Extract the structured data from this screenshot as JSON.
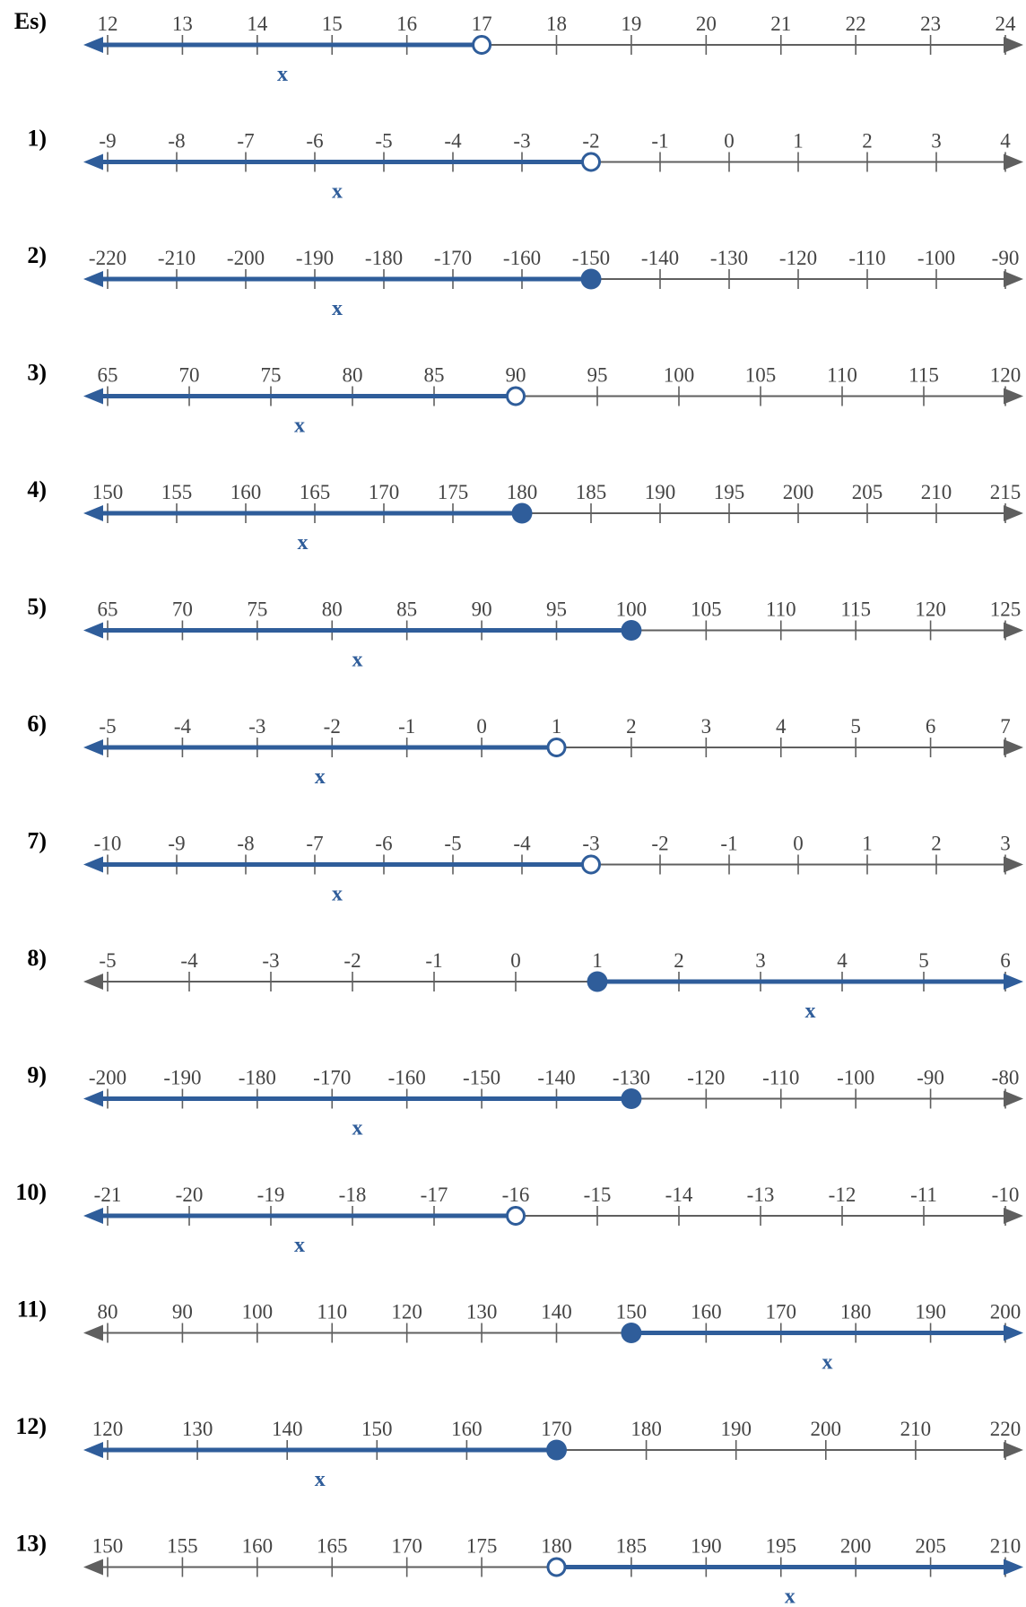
{
  "colors": {
    "axis": "#5f5f5f",
    "solution": "#2f5d9a",
    "label": "#000000",
    "tick_text": "#444444"
  },
  "problems": [
    {
      "label": "Es)",
      "ticks": [
        "12",
        "13",
        "14",
        "15",
        "16",
        "17",
        "18",
        "19",
        "20",
        "21",
        "22",
        "23",
        "24"
      ],
      "point_index": 5,
      "closed": false,
      "direction": "left",
      "variable": "x"
    },
    {
      "label": "1)",
      "ticks": [
        "-9",
        "-8",
        "-7",
        "-6",
        "-5",
        "-4",
        "-3",
        "-2",
        "-1",
        "0",
        "1",
        "2",
        "3",
        "4"
      ],
      "point_index": 7,
      "closed": false,
      "direction": "left",
      "variable": "x"
    },
    {
      "label": "2)",
      "ticks": [
        "-220",
        "-210",
        "-200",
        "-190",
        "-180",
        "-170",
        "-160",
        "-150",
        "-140",
        "-130",
        "-120",
        "-110",
        "-100",
        "-90"
      ],
      "point_index": 7,
      "closed": true,
      "direction": "left",
      "variable": "x"
    },
    {
      "label": "3)",
      "ticks": [
        "65",
        "70",
        "75",
        "80",
        "85",
        "90",
        "95",
        "100",
        "105",
        "110",
        "115",
        "120"
      ],
      "point_index": 5,
      "closed": false,
      "direction": "left",
      "variable": "x"
    },
    {
      "label": "4)",
      "ticks": [
        "150",
        "155",
        "160",
        "165",
        "170",
        "175",
        "180",
        "185",
        "190",
        "195",
        "200",
        "205",
        "210",
        "215"
      ],
      "point_index": 6,
      "closed": true,
      "direction": "left",
      "variable": "x"
    },
    {
      "label": "5)",
      "ticks": [
        "65",
        "70",
        "75",
        "80",
        "85",
        "90",
        "95",
        "100",
        "105",
        "110",
        "115",
        "120",
        "125"
      ],
      "point_index": 7,
      "closed": true,
      "direction": "left",
      "variable": "x"
    },
    {
      "label": "6)",
      "ticks": [
        "-5",
        "-4",
        "-3",
        "-2",
        "-1",
        "0",
        "1",
        "2",
        "3",
        "4",
        "5",
        "6",
        "7"
      ],
      "point_index": 6,
      "closed": false,
      "direction": "left",
      "variable": "x"
    },
    {
      "label": "7)",
      "ticks": [
        "-10",
        "-9",
        "-8",
        "-7",
        "-6",
        "-5",
        "-4",
        "-3",
        "-2",
        "-1",
        "0",
        "1",
        "2",
        "3"
      ],
      "point_index": 7,
      "closed": false,
      "direction": "left",
      "variable": "x"
    },
    {
      "label": "8)",
      "ticks": [
        "-5",
        "-4",
        "-3",
        "-2",
        "-1",
        "0",
        "1",
        "2",
        "3",
        "4",
        "5",
        "6"
      ],
      "point_index": 6,
      "closed": true,
      "direction": "right",
      "variable": "x"
    },
    {
      "label": "9)",
      "ticks": [
        "-200",
        "-190",
        "-180",
        "-170",
        "-160",
        "-150",
        "-140",
        "-130",
        "-120",
        "-110",
        "-100",
        "-90",
        "-80"
      ],
      "point_index": 7,
      "closed": true,
      "direction": "left",
      "variable": "x"
    },
    {
      "label": "10)",
      "ticks": [
        "-21",
        "-20",
        "-19",
        "-18",
        "-17",
        "-16",
        "-15",
        "-14",
        "-13",
        "-12",
        "-11",
        "-10"
      ],
      "point_index": 5,
      "closed": false,
      "direction": "left",
      "variable": "x"
    },
    {
      "label": "11)",
      "ticks": [
        "80",
        "90",
        "100",
        "110",
        "120",
        "130",
        "140",
        "150",
        "160",
        "170",
        "180",
        "190",
        "200"
      ],
      "point_index": 7,
      "closed": true,
      "direction": "right",
      "variable": "x"
    },
    {
      "label": "12)",
      "ticks": [
        "120",
        "130",
        "140",
        "150",
        "160",
        "170",
        "180",
        "190",
        "200",
        "210",
        "220"
      ],
      "point_index": 5,
      "closed": true,
      "direction": "left",
      "variable": "x"
    },
    {
      "label": "13)",
      "ticks": [
        "150",
        "155",
        "160",
        "165",
        "170",
        "175",
        "180",
        "185",
        "190",
        "195",
        "200",
        "205",
        "210"
      ],
      "point_index": 6,
      "closed": false,
      "direction": "right",
      "variable": "x"
    }
  ]
}
